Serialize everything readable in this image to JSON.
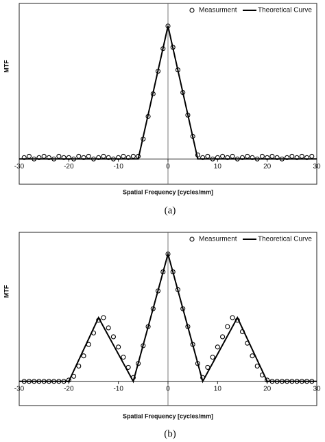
{
  "chart_data": [
    {
      "type": "scatter",
      "y_label": "MTF",
      "x_label": "Spatial Frequency  [cycles/mm]",
      "caption": "(a)",
      "xlim": [
        -30,
        30
      ],
      "xticks": [
        -30,
        -20,
        -10,
        0,
        10,
        20,
        30
      ],
      "ylim": [
        -0.19,
        1.17
      ],
      "legend": "upper right",
      "series": [
        {
          "name": "Measurment",
          "mode": "markers",
          "color": "#000000",
          "x": [
            -29,
            -28,
            -27,
            -26,
            -25,
            -24,
            -23,
            -22,
            -21,
            -20,
            -19,
            -18,
            -17,
            -16,
            -15,
            -14,
            -13,
            -12,
            -11,
            -10,
            -9,
            -8,
            -7,
            -6,
            -5,
            -4,
            -3,
            -2,
            -1,
            0,
            1,
            2,
            3,
            4,
            5,
            6,
            7,
            8,
            9,
            10,
            11,
            12,
            13,
            14,
            15,
            16,
            17,
            18,
            19,
            20,
            21,
            22,
            23,
            24,
            25,
            26,
            27,
            28,
            29
          ],
          "values": [
            0.01,
            0.02,
            0.0,
            0.01,
            0.02,
            0.01,
            0.0,
            0.02,
            0.01,
            0.01,
            0.0,
            0.02,
            0.01,
            0.02,
            0.0,
            0.01,
            0.02,
            0.01,
            0.0,
            0.01,
            0.02,
            0.01,
            0.02,
            0.02,
            0.15,
            0.32,
            0.49,
            0.66,
            0.83,
            1.0,
            0.84,
            0.67,
            0.5,
            0.33,
            0.17,
            0.03,
            0.01,
            0.02,
            0.0,
            0.01,
            0.02,
            0.01,
            0.02,
            0.0,
            0.01,
            0.02,
            0.01,
            0.0,
            0.02,
            0.01,
            0.02,
            0.01,
            0.0,
            0.01,
            0.02,
            0.01,
            0.02,
            0.01,
            0.02
          ]
        },
        {
          "name": "Theoretical Curve",
          "mode": "line",
          "color": "#000000",
          "x": [
            -30,
            -6,
            0,
            6,
            30
          ],
          "values": [
            0,
            0,
            1,
            0,
            0
          ]
        }
      ]
    },
    {
      "type": "scatter",
      "y_label": "MTF",
      "x_label": "Spatial Frequency  [cycles/mm]",
      "caption": "(b)",
      "xlim": [
        -30,
        30
      ],
      "xticks": [
        -30,
        -20,
        -10,
        0,
        10,
        20,
        30
      ],
      "ylim": [
        -0.19,
        1.17
      ],
      "legend": "upper right",
      "series": [
        {
          "name": "Measurment",
          "mode": "markers",
          "color": "#000000",
          "x": [
            -29,
            -28,
            -27,
            -26,
            -25,
            -24,
            -23,
            -22,
            -21,
            -20,
            -19,
            -18,
            -17,
            -16,
            -15,
            -14,
            -13,
            -12,
            -11,
            -10,
            -9,
            -8,
            -7,
            -6,
            -5,
            -4,
            -3,
            -2,
            -1,
            0,
            1,
            2,
            3,
            4,
            5,
            6,
            7,
            8,
            9,
            10,
            11,
            12,
            13,
            14,
            15,
            16,
            17,
            18,
            19,
            20,
            21,
            22,
            23,
            24,
            25,
            26,
            27,
            28,
            29
          ],
          "values": [
            0,
            0,
            0,
            0,
            0,
            0,
            0,
            0,
            0,
            0.01,
            0.04,
            0.12,
            0.2,
            0.29,
            0.38,
            0.48,
            0.5,
            0.42,
            0.35,
            0.27,
            0.19,
            0.11,
            0.03,
            0.14,
            0.28,
            0.43,
            0.57,
            0.71,
            0.86,
            1.0,
            0.86,
            0.72,
            0.57,
            0.43,
            0.29,
            0.14,
            0.03,
            0.11,
            0.19,
            0.27,
            0.35,
            0.43,
            0.5,
            0.48,
            0.39,
            0.3,
            0.2,
            0.12,
            0.05,
            0.01,
            0,
            0,
            0,
            0,
            0,
            0,
            0,
            0,
            0
          ]
        },
        {
          "name": "Theoretical Curve",
          "mode": "line",
          "color": "#000000",
          "x": [
            -30,
            -20,
            -14,
            -7,
            0,
            7,
            14,
            20,
            30
          ],
          "values": [
            0,
            0,
            0.5,
            0,
            1,
            0,
            0.5,
            0,
            0
          ]
        }
      ]
    }
  ]
}
